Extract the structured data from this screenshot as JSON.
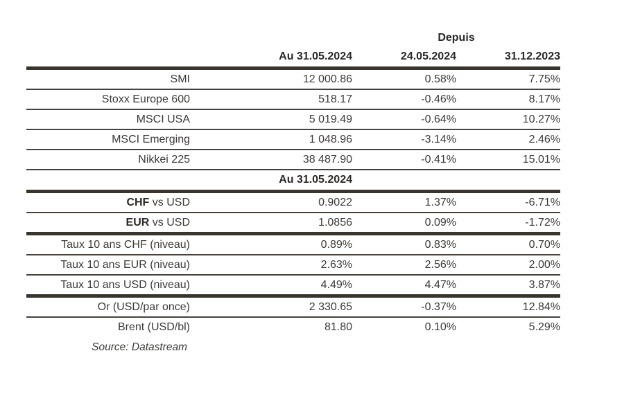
{
  "header": {
    "depuis_label": "Depuis",
    "columns": [
      "Au 31.05.2024",
      "24.05.2024",
      "31.12.2023"
    ]
  },
  "section2_header": "Au 31.05.2024",
  "rows": [
    {
      "label": "SMI",
      "values": [
        "12 000.86",
        "0.58%",
        "7.75%"
      ]
    },
    {
      "label": "Stoxx Europe 600",
      "values": [
        "518.17",
        "-0.46%",
        "8.17%"
      ]
    },
    {
      "label": "MSCI USA",
      "values": [
        "5 019.49",
        "-0.64%",
        "10.27%"
      ]
    },
    {
      "label": "MSCI Emerging",
      "values": [
        "1 048.96",
        "-3.14%",
        "2.46%"
      ]
    },
    {
      "label": "Nikkei 225",
      "values": [
        "38 487.90",
        "-0.41%",
        "15.01%"
      ]
    },
    {
      "label_bold": "CHF",
      "label_rest": " vs USD",
      "values": [
        "0.9022",
        "1.37%",
        "-6.71%"
      ]
    },
    {
      "label_bold": "EUR",
      "label_rest": " vs USD",
      "values": [
        "1.0856",
        "0.09%",
        "-1.72%"
      ]
    },
    {
      "label": "Taux 10 ans CHF (niveau)",
      "values": [
        "0.89%",
        "0.83%",
        "0.70%"
      ]
    },
    {
      "label": "Taux 10 ans EUR (niveau)",
      "values": [
        "2.63%",
        "2.56%",
        "2.00%"
      ]
    },
    {
      "label": "Taux 10 ans USD (niveau)",
      "values": [
        "4.49%",
        "4.47%",
        "3.87%"
      ]
    },
    {
      "label": "Or (USD/par once)",
      "values": [
        "2 330.65",
        "-0.37%",
        "12.84%"
      ]
    },
    {
      "label": "Brent (USD/bl)",
      "values": [
        "81.80",
        "0.10%",
        "5.29%"
      ]
    }
  ],
  "source_note": "Source: Datastream",
  "colors": {
    "rule_thick": "#39342c",
    "rule_thin": "#46413a",
    "text": "#3c3a37",
    "text_bold": "#2b2926"
  }
}
